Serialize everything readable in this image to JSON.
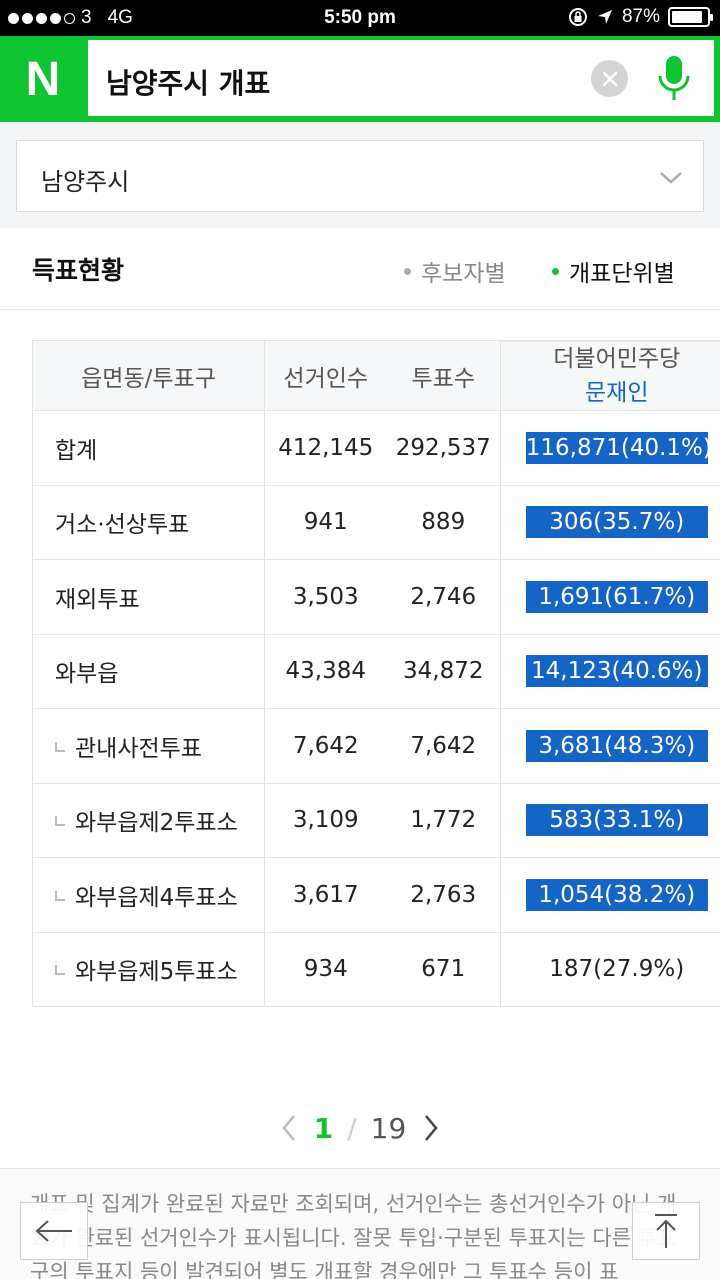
{
  "status_bar": {
    "carrier": "3",
    "network": "4G",
    "time": "5:50 pm",
    "battery": "87%",
    "battery_level": 0.87
  },
  "search": {
    "logo": "N",
    "query": "남양주시 개표",
    "clear_icon": "close-circle-icon",
    "mic_icon": "microphone-icon"
  },
  "region": {
    "selected": "남양주시"
  },
  "section": {
    "title": "득표현황",
    "tabs": [
      {
        "label": "후보자별",
        "active": false
      },
      {
        "label": "개표단위별",
        "active": true
      }
    ]
  },
  "table": {
    "headers": {
      "unit": "읍면동/투표구",
      "voters": "선거인수",
      "votes": "투표수",
      "party": "더불어민주당",
      "candidate": "문재인"
    },
    "rows": [
      {
        "name": "합계",
        "sub": false,
        "voters": "412,145",
        "votes": "292,537",
        "result": "116,871(40.1%)",
        "highlight": true
      },
      {
        "name": "거소·선상투표",
        "sub": false,
        "voters": "941",
        "votes": "889",
        "result": "306(35.7%)",
        "highlight": true
      },
      {
        "name": "재외투표",
        "sub": false,
        "voters": "3,503",
        "votes": "2,746",
        "result": "1,691(61.7%)",
        "highlight": true
      },
      {
        "name": "와부읍",
        "sub": false,
        "voters": "43,384",
        "votes": "34,872",
        "result": "14,123(40.6%)",
        "highlight": true
      },
      {
        "name": "관내사전투표",
        "sub": true,
        "voters": "7,642",
        "votes": "7,642",
        "result": "3,681(48.3%)",
        "highlight": true
      },
      {
        "name": "와부읍제2투표소",
        "sub": true,
        "voters": "3,109",
        "votes": "1,772",
        "result": "583(33.1%)",
        "highlight": true
      },
      {
        "name": "와부읍제4투표소",
        "sub": true,
        "voters": "3,617",
        "votes": "2,763",
        "result": "1,054(38.2%)",
        "highlight": true
      },
      {
        "name": "와부읍제5투표소",
        "sub": true,
        "voters": "934",
        "votes": "671",
        "result": "187(27.9%)",
        "highlight": false
      }
    ]
  },
  "pager": {
    "current": "1",
    "separator": "/",
    "total": "19"
  },
  "notice": {
    "text": "개표 및 집계가 완료된 자료만 조회되며, 선거인수는 총선거인수가 아닌 개표가 완료된 선거인수가 표시됩니다. 잘못 투입·구분된 투표지는 다른 투표구의 투표지 등이 발견되어 별도 개표할 경우에만 그 투표수 등이 표"
  },
  "colors": {
    "brand_green": "#0ec431",
    "highlight_blue": "#1565c6",
    "candidate_blue": "#1565c6"
  }
}
